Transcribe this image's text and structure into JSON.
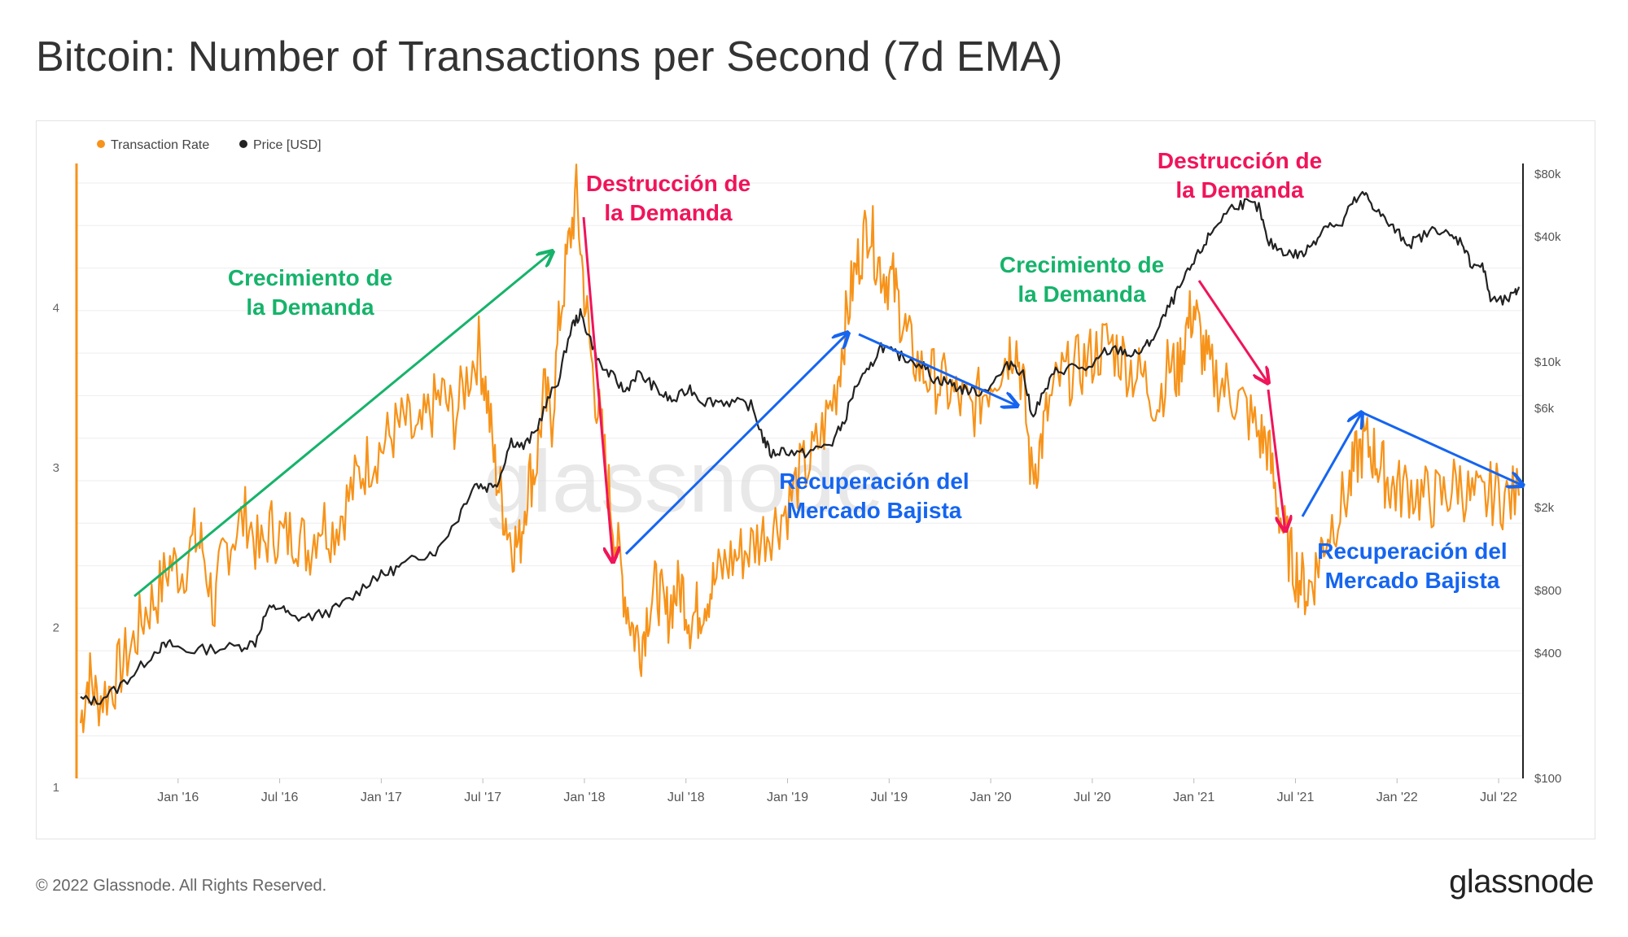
{
  "title": "Bitcoin: Number of Transactions per Second (7d EMA)",
  "footer": "© 2022 Glassnode. All Rights Reserved.",
  "brand": "glassnode",
  "watermark": "glassnode",
  "colors": {
    "transaction_rate": "#f7931a",
    "price": "#222222",
    "green": "#16b36b",
    "red": "#f0145a",
    "blue": "#1565f0"
  },
  "chart_data": {
    "type": "line",
    "title": "Bitcoin: Number of Transactions per Second (7d EMA)",
    "legend": [
      {
        "name": "Transaction Rate",
        "color": "#f7931a"
      },
      {
        "name": "Price [USD]",
        "color": "#222222"
      }
    ],
    "legend_position": "top-left",
    "x_ticks": [
      "Jan '16",
      "Jul '16",
      "Jan '17",
      "Jul '17",
      "Jan '18",
      "Jul '18",
      "Jan '19",
      "Jul '19",
      "Jan '20",
      "Jul '20",
      "Jan '21",
      "Jul '21",
      "Jan '22",
      "Jul '22"
    ],
    "x_range": [
      2015.5,
      2022.62
    ],
    "y_left": {
      "ticks": [
        "1",
        "2",
        "3",
        "4"
      ],
      "range": [
        1.05,
        4.9
      ]
    },
    "y_right": {
      "scale": "log",
      "ticks": [
        "$100",
        "$400",
        "$800",
        "$2k",
        "$6k",
        "$10k",
        "$40k",
        "$80k"
      ],
      "range": [
        100,
        90000
      ]
    },
    "series": [
      {
        "name": "Transaction Rate",
        "axis": "left",
        "points": [
          [
            2015.52,
            1.4
          ],
          [
            2015.56,
            1.7
          ],
          [
            2015.6,
            1.55
          ],
          [
            2015.66,
            1.6
          ],
          [
            2015.72,
            1.75
          ],
          [
            2015.78,
            1.9
          ],
          [
            2015.84,
            2.1
          ],
          [
            2015.9,
            2.2
          ],
          [
            2015.96,
            2.4
          ],
          [
            2016.02,
            2.35
          ],
          [
            2016.08,
            2.55
          ],
          [
            2016.12,
            2.5
          ],
          [
            2016.18,
            2.1
          ],
          [
            2016.22,
            2.45
          ],
          [
            2016.28,
            2.6
          ],
          [
            2016.34,
            2.7
          ],
          [
            2016.4,
            2.45
          ],
          [
            2016.46,
            2.62
          ],
          [
            2016.52,
            2.55
          ],
          [
            2016.58,
            2.6
          ],
          [
            2016.64,
            2.48
          ],
          [
            2016.7,
            2.68
          ],
          [
            2016.76,
            2.6
          ],
          [
            2016.82,
            2.75
          ],
          [
            2016.88,
            2.92
          ],
          [
            2016.94,
            3.05
          ],
          [
            2017.0,
            3.12
          ],
          [
            2017.06,
            3.22
          ],
          [
            2017.12,
            3.28
          ],
          [
            2017.18,
            3.15
          ],
          [
            2017.24,
            3.35
          ],
          [
            2017.3,
            3.45
          ],
          [
            2017.36,
            3.3
          ],
          [
            2017.42,
            3.55
          ],
          [
            2017.48,
            3.75
          ],
          [
            2017.52,
            3.45
          ],
          [
            2017.56,
            3.0
          ],
          [
            2017.6,
            2.75
          ],
          [
            2017.64,
            2.55
          ],
          [
            2017.68,
            2.5
          ],
          [
            2017.72,
            2.9
          ],
          [
            2017.76,
            3.0
          ],
          [
            2017.8,
            3.45
          ],
          [
            2017.84,
            3.3
          ],
          [
            2017.88,
            3.95
          ],
          [
            2017.92,
            4.35
          ],
          [
            2017.96,
            4.7
          ],
          [
            2018.0,
            4.1
          ],
          [
            2018.04,
            3.6
          ],
          [
            2018.08,
            3.25
          ],
          [
            2018.12,
            2.85
          ],
          [
            2018.16,
            2.5
          ],
          [
            2018.2,
            2.2
          ],
          [
            2018.24,
            1.98
          ],
          [
            2018.28,
            1.9
          ],
          [
            2018.32,
            2.15
          ],
          [
            2018.36,
            2.25
          ],
          [
            2018.4,
            2.05
          ],
          [
            2018.44,
            2.2
          ],
          [
            2018.48,
            2.25
          ],
          [
            2018.52,
            2.05
          ],
          [
            2018.56,
            2.1
          ],
          [
            2018.6,
            2.2
          ],
          [
            2018.64,
            2.28
          ],
          [
            2018.7,
            2.4
          ],
          [
            2018.76,
            2.45
          ],
          [
            2018.82,
            2.5
          ],
          [
            2018.88,
            2.58
          ],
          [
            2018.94,
            2.65
          ],
          [
            2019.0,
            2.75
          ],
          [
            2019.06,
            2.95
          ],
          [
            2019.12,
            3.05
          ],
          [
            2019.18,
            3.25
          ],
          [
            2019.24,
            3.5
          ],
          [
            2019.28,
            3.85
          ],
          [
            2019.32,
            4.15
          ],
          [
            2019.36,
            4.35
          ],
          [
            2019.4,
            4.55
          ],
          [
            2019.44,
            4.3
          ],
          [
            2019.48,
            4.2
          ],
          [
            2019.52,
            4.15
          ],
          [
            2019.56,
            3.95
          ],
          [
            2019.6,
            3.75
          ],
          [
            2019.66,
            3.6
          ],
          [
            2019.72,
            3.55
          ],
          [
            2019.78,
            3.5
          ],
          [
            2019.84,
            3.42
          ],
          [
            2019.9,
            3.35
          ],
          [
            2019.96,
            3.45
          ],
          [
            2020.02,
            3.6
          ],
          [
            2020.08,
            3.7
          ],
          [
            2020.12,
            3.8
          ],
          [
            2020.16,
            3.5
          ],
          [
            2020.2,
            2.95
          ],
          [
            2020.24,
            3.1
          ],
          [
            2020.28,
            3.35
          ],
          [
            2020.34,
            3.55
          ],
          [
            2020.4,
            3.6
          ],
          [
            2020.46,
            3.65
          ],
          [
            2020.52,
            3.72
          ],
          [
            2020.58,
            3.78
          ],
          [
            2020.64,
            3.7
          ],
          [
            2020.7,
            3.6
          ],
          [
            2020.76,
            3.55
          ],
          [
            2020.82,
            3.4
          ],
          [
            2020.88,
            3.65
          ],
          [
            2020.92,
            3.58
          ],
          [
            2020.96,
            3.85
          ],
          [
            2021.0,
            4.0
          ],
          [
            2021.04,
            3.75
          ],
          [
            2021.08,
            3.6
          ],
          [
            2021.14,
            3.52
          ],
          [
            2021.2,
            3.45
          ],
          [
            2021.26,
            3.35
          ],
          [
            2021.32,
            3.2
          ],
          [
            2021.36,
            3.15
          ],
          [
            2021.4,
            2.85
          ],
          [
            2021.44,
            2.6
          ],
          [
            2021.48,
            2.42
          ],
          [
            2021.52,
            2.3
          ],
          [
            2021.56,
            2.22
          ],
          [
            2021.6,
            2.35
          ],
          [
            2021.64,
            2.55
          ],
          [
            2021.7,
            2.7
          ],
          [
            2021.76,
            2.85
          ],
          [
            2021.8,
            3.05
          ],
          [
            2021.84,
            3.15
          ],
          [
            2021.88,
            3.1
          ],
          [
            2021.92,
            3.0
          ],
          [
            2021.96,
            2.9
          ],
          [
            2022.0,
            2.85
          ],
          [
            2022.06,
            2.88
          ],
          [
            2022.12,
            2.82
          ],
          [
            2022.18,
            2.8
          ],
          [
            2022.24,
            2.82
          ],
          [
            2022.3,
            2.92
          ],
          [
            2022.36,
            2.8
          ],
          [
            2022.42,
            2.78
          ],
          [
            2022.48,
            2.85
          ],
          [
            2022.54,
            2.8
          ],
          [
            2022.6,
            2.82
          ]
        ]
      },
      {
        "name": "Price [USD]",
        "axis": "right",
        "points": [
          [
            2015.52,
            240
          ],
          [
            2015.6,
            235
          ],
          [
            2015.7,
            270
          ],
          [
            2015.8,
            330
          ],
          [
            2015.9,
            420
          ],
          [
            2015.96,
            440
          ],
          [
            2016.04,
            410
          ],
          [
            2016.16,
            420
          ],
          [
            2016.3,
            430
          ],
          [
            2016.38,
            450
          ],
          [
            2016.44,
            640
          ],
          [
            2016.5,
            670
          ],
          [
            2016.56,
            590
          ],
          [
            2016.66,
            600
          ],
          [
            2016.76,
            640
          ],
          [
            2016.86,
            740
          ],
          [
            2016.96,
            920
          ],
          [
            2017.02,
            960
          ],
          [
            2017.1,
            1050
          ],
          [
            2017.2,
            1180
          ],
          [
            2017.28,
            1250
          ],
          [
            2017.38,
            1800
          ],
          [
            2017.46,
            2600
          ],
          [
            2017.52,
            2500
          ],
          [
            2017.58,
            2700
          ],
          [
            2017.64,
            4200
          ],
          [
            2017.7,
            3900
          ],
          [
            2017.76,
            4600
          ],
          [
            2017.82,
            6500
          ],
          [
            2017.88,
            8500
          ],
          [
            2017.94,
            15000
          ],
          [
            2017.98,
            17000
          ],
          [
            2018.02,
            13500
          ],
          [
            2018.08,
            9500
          ],
          [
            2018.14,
            8500
          ],
          [
            2018.2,
            7200
          ],
          [
            2018.26,
            8800
          ],
          [
            2018.32,
            8000
          ],
          [
            2018.38,
            7000
          ],
          [
            2018.44,
            6500
          ],
          [
            2018.52,
            7500
          ],
          [
            2018.58,
            6500
          ],
          [
            2018.66,
            6500
          ],
          [
            2018.74,
            6400
          ],
          [
            2018.82,
            6200
          ],
          [
            2018.88,
            4300
          ],
          [
            2018.92,
            3600
          ],
          [
            2018.98,
            3800
          ],
          [
            2019.06,
            3600
          ],
          [
            2019.14,
            3800
          ],
          [
            2019.22,
            4100
          ],
          [
            2019.28,
            5200
          ],
          [
            2019.34,
            7800
          ],
          [
            2019.4,
            9000
          ],
          [
            2019.46,
            12000
          ],
          [
            2019.52,
            11000
          ],
          [
            2019.58,
            10500
          ],
          [
            2019.66,
            9800
          ],
          [
            2019.72,
            8300
          ],
          [
            2019.78,
            8100
          ],
          [
            2019.84,
            7500
          ],
          [
            2019.9,
            7300
          ],
          [
            2019.96,
            7200
          ],
          [
            2020.04,
            8500
          ],
          [
            2020.1,
            10000
          ],
          [
            2020.16,
            8800
          ],
          [
            2020.2,
            5500
          ],
          [
            2020.26,
            7000
          ],
          [
            2020.32,
            9000
          ],
          [
            2020.4,
            9500
          ],
          [
            2020.5,
            9300
          ],
          [
            2020.56,
            11200
          ],
          [
            2020.64,
            11500
          ],
          [
            2020.7,
            10700
          ],
          [
            2020.76,
            11700
          ],
          [
            2020.82,
            14000
          ],
          [
            2020.88,
            18500
          ],
          [
            2020.94,
            23500
          ],
          [
            2021.0,
            30000
          ],
          [
            2021.06,
            38000
          ],
          [
            2021.12,
            47000
          ],
          [
            2021.2,
            57000
          ],
          [
            2021.26,
            58000
          ],
          [
            2021.32,
            55000
          ],
          [
            2021.36,
            38000
          ],
          [
            2021.42,
            35000
          ],
          [
            2021.48,
            33000
          ],
          [
            2021.54,
            33000
          ],
          [
            2021.6,
            39000
          ],
          [
            2021.66,
            47000
          ],
          [
            2021.72,
            44000
          ],
          [
            2021.78,
            58000
          ],
          [
            2021.84,
            64000
          ],
          [
            2021.88,
            57000
          ],
          [
            2021.94,
            48000
          ],
          [
            2022.0,
            42000
          ],
          [
            2022.06,
            37000
          ],
          [
            2022.12,
            40000
          ],
          [
            2022.2,
            44000
          ],
          [
            2022.26,
            40000
          ],
          [
            2022.32,
            38000
          ],
          [
            2022.36,
            30000
          ],
          [
            2022.42,
            29000
          ],
          [
            2022.46,
            20000
          ],
          [
            2022.52,
            19500
          ],
          [
            2022.58,
            21000
          ],
          [
            2022.6,
            23000
          ]
        ]
      }
    ],
    "annotations": [
      {
        "text": "Crecimiento de\nla Demanda",
        "color": "green"
      },
      {
        "text": "Destrucción de\nla Demanda",
        "color": "red"
      },
      {
        "text": "Recuperación del\nMercado Bajista",
        "color": "blue"
      },
      {
        "text": "Crecimiento de\nla Demanda",
        "color": "green"
      },
      {
        "text": "Destrucción de\nla Demanda",
        "color": "red"
      },
      {
        "text": "Recuperación del\nMercado Bajista",
        "color": "blue"
      }
    ]
  }
}
